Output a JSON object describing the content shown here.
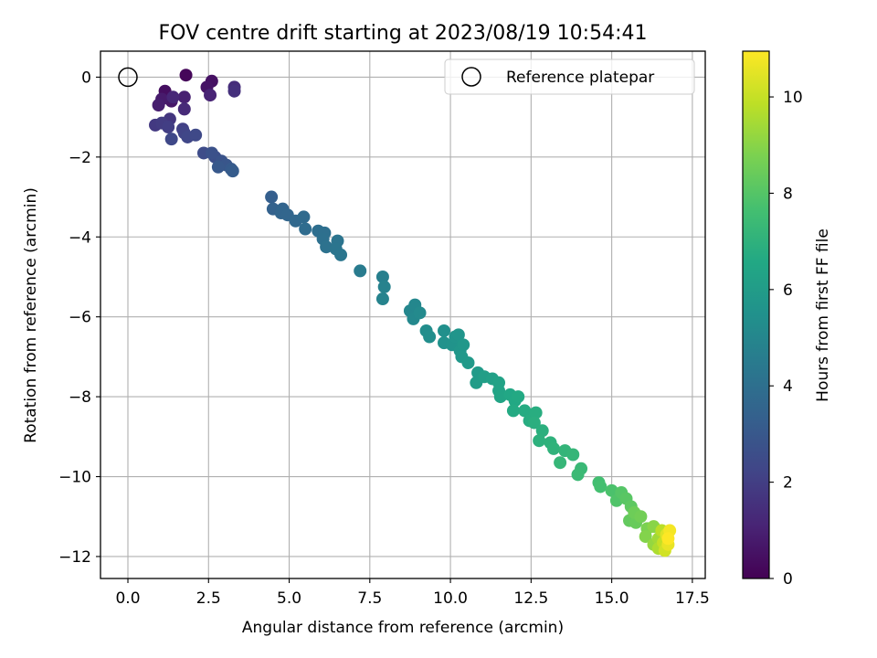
{
  "chart_data": {
    "type": "scatter",
    "title": "FOV centre drift starting at 2023/08/19 10:54:41",
    "xlabel": "Angular distance from reference (arcmin)",
    "ylabel": "Rotation from reference (arcmin)",
    "xlim": [
      -0.85,
      17.9
    ],
    "ylim": [
      -12.55,
      0.65
    ],
    "xticks": [
      0.0,
      2.5,
      5.0,
      7.5,
      10.0,
      12.5,
      15.0,
      17.5
    ],
    "xtick_labels": [
      "0.0",
      "2.5",
      "5.0",
      "7.5",
      "10.0",
      "12.5",
      "15.0",
      "17.5"
    ],
    "yticks": [
      0,
      -2,
      -4,
      -6,
      -8,
      -10,
      -12
    ],
    "ytick_labels": [
      "0",
      "−2",
      "−4",
      "−6",
      "−8",
      "−10",
      "−12"
    ],
    "grid": true,
    "legend": {
      "placement": "top-right",
      "entries": [
        "Reference platepar"
      ]
    },
    "reference_point": {
      "x": 0.0,
      "y": 0.0
    },
    "colorbar": {
      "label": "Hours from first FF file",
      "colormap": "viridis",
      "range": [
        0,
        10.95
      ],
      "ticks": [
        0,
        2,
        4,
        6,
        8,
        10
      ],
      "tick_labels": [
        "0",
        "2",
        "4",
        "6",
        "8",
        "10"
      ]
    },
    "series": [
      {
        "points": [
          [
            1.8,
            0.05,
            0.2
          ],
          [
            1.15,
            -0.35,
            0.4
          ],
          [
            2.6,
            -0.1,
            0.5
          ],
          [
            2.45,
            -0.25,
            0.6
          ],
          [
            1.35,
            -0.6,
            0.7
          ],
          [
            1.05,
            -0.55,
            0.8
          ],
          [
            0.95,
            -0.7,
            0.9
          ],
          [
            1.75,
            -0.5,
            1.0
          ],
          [
            2.55,
            -0.45,
            1.1
          ],
          [
            1.4,
            -0.5,
            1.2
          ],
          [
            1.75,
            -0.8,
            1.3
          ],
          [
            3.3,
            -0.25,
            1.4
          ],
          [
            3.3,
            -0.35,
            1.5
          ],
          [
            1.3,
            -1.05,
            1.7
          ],
          [
            0.85,
            -1.2,
            1.8
          ],
          [
            1.05,
            -1.15,
            1.9
          ],
          [
            1.25,
            -1.25,
            2.0
          ],
          [
            1.7,
            -1.3,
            2.1
          ],
          [
            1.75,
            -1.4,
            2.2
          ],
          [
            1.85,
            -1.5,
            2.3
          ],
          [
            1.35,
            -1.55,
            2.35
          ],
          [
            2.1,
            -1.45,
            2.4
          ],
          [
            2.35,
            -1.9,
            2.5
          ],
          [
            2.7,
            -2.0,
            2.6
          ],
          [
            2.6,
            -1.9,
            2.7
          ],
          [
            2.9,
            -2.1,
            2.8
          ],
          [
            3.05,
            -2.2,
            2.9
          ],
          [
            2.8,
            -2.25,
            3.0
          ],
          [
            3.2,
            -2.3,
            3.1
          ],
          [
            3.25,
            -2.35,
            3.15
          ],
          [
            4.45,
            -3.0,
            3.3
          ],
          [
            4.5,
            -3.3,
            3.4
          ],
          [
            4.8,
            -3.3,
            3.5
          ],
          [
            4.75,
            -3.4,
            3.55
          ],
          [
            4.95,
            -3.45,
            3.6
          ],
          [
            5.2,
            -3.6,
            3.7
          ],
          [
            5.45,
            -3.5,
            3.75
          ],
          [
            5.5,
            -3.8,
            3.85
          ],
          [
            5.9,
            -3.85,
            3.95
          ],
          [
            6.1,
            -3.9,
            4.0
          ],
          [
            6.05,
            -4.05,
            4.05
          ],
          [
            6.15,
            -4.25,
            4.1
          ],
          [
            6.5,
            -4.1,
            4.2
          ],
          [
            6.45,
            -4.3,
            4.25
          ],
          [
            6.6,
            -4.45,
            4.3
          ],
          [
            7.2,
            -4.85,
            4.5
          ],
          [
            7.9,
            -5.0,
            4.7
          ],
          [
            7.95,
            -5.25,
            4.8
          ],
          [
            7.9,
            -5.55,
            4.85
          ],
          [
            8.75,
            -5.85,
            5.0
          ],
          [
            8.9,
            -5.7,
            5.05
          ],
          [
            8.85,
            -6.05,
            5.1
          ],
          [
            9.05,
            -5.9,
            5.15
          ],
          [
            9.25,
            -6.35,
            5.3
          ],
          [
            9.35,
            -6.5,
            5.35
          ],
          [
            9.8,
            -6.35,
            5.45
          ],
          [
            9.8,
            -6.65,
            5.5
          ],
          [
            10.05,
            -6.7,
            5.55
          ],
          [
            10.15,
            -6.5,
            5.6
          ],
          [
            10.25,
            -6.45,
            5.65
          ],
          [
            10.3,
            -6.85,
            5.7
          ],
          [
            10.4,
            -6.7,
            5.75
          ],
          [
            10.35,
            -7.0,
            5.8
          ],
          [
            10.55,
            -7.15,
            5.85
          ],
          [
            10.85,
            -7.4,
            5.95
          ],
          [
            10.8,
            -7.65,
            6.0
          ],
          [
            11.05,
            -7.5,
            6.1
          ],
          [
            11.3,
            -7.55,
            6.2
          ],
          [
            11.5,
            -7.65,
            6.3
          ],
          [
            11.5,
            -7.85,
            6.35
          ],
          [
            11.55,
            -8.0,
            6.4
          ],
          [
            11.85,
            -7.95,
            6.5
          ],
          [
            12.0,
            -8.1,
            6.55
          ],
          [
            12.1,
            -8.0,
            6.6
          ],
          [
            11.95,
            -8.35,
            6.65
          ],
          [
            12.3,
            -8.35,
            6.7
          ],
          [
            12.45,
            -8.6,
            6.75
          ],
          [
            12.65,
            -8.4,
            6.8
          ],
          [
            12.6,
            -8.65,
            6.85
          ],
          [
            12.85,
            -8.85,
            6.9
          ],
          [
            12.75,
            -9.1,
            6.95
          ],
          [
            13.1,
            -9.15,
            7.0
          ],
          [
            13.2,
            -9.3,
            7.05
          ],
          [
            13.55,
            -9.35,
            7.15
          ],
          [
            13.8,
            -9.45,
            7.2
          ],
          [
            13.4,
            -9.65,
            7.25
          ],
          [
            14.05,
            -9.8,
            7.35
          ],
          [
            13.95,
            -9.95,
            7.4
          ],
          [
            14.6,
            -10.15,
            7.6
          ],
          [
            14.65,
            -10.25,
            7.65
          ],
          [
            15.0,
            -10.35,
            7.8
          ],
          [
            15.15,
            -10.6,
            7.9
          ],
          [
            15.3,
            -10.4,
            8.0
          ],
          [
            15.45,
            -10.55,
            8.1
          ],
          [
            15.6,
            -10.75,
            8.2
          ],
          [
            15.55,
            -11.1,
            8.3
          ],
          [
            15.75,
            -11.15,
            8.4
          ],
          [
            15.7,
            -10.9,
            8.5
          ],
          [
            15.9,
            -11.0,
            8.6
          ],
          [
            16.1,
            -11.3,
            8.75
          ],
          [
            16.05,
            -11.5,
            8.9
          ],
          [
            16.3,
            -11.25,
            9.0
          ],
          [
            16.3,
            -11.7,
            9.2
          ],
          [
            16.45,
            -11.55,
            9.4
          ],
          [
            16.45,
            -11.8,
            9.6
          ],
          [
            16.55,
            -11.35,
            9.8
          ],
          [
            16.6,
            -11.65,
            10.0
          ],
          [
            16.65,
            -11.85,
            10.2
          ],
          [
            16.7,
            -11.45,
            10.4
          ],
          [
            16.75,
            -11.7,
            10.6
          ],
          [
            16.8,
            -11.35,
            10.8
          ],
          [
            16.75,
            -11.55,
            10.95
          ]
        ]
      }
    ]
  }
}
